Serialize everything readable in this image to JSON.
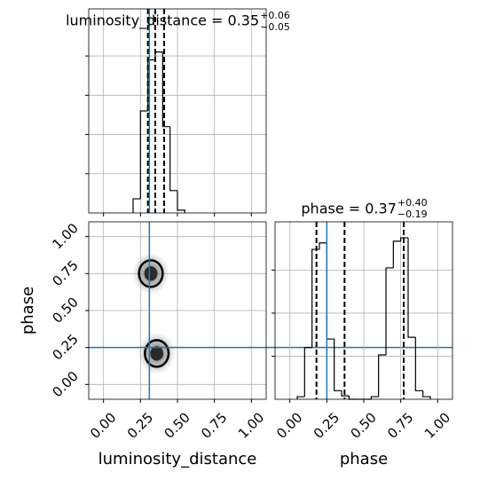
{
  "chart_data": [
    {
      "type": "histogram",
      "title": "luminosity_distance = 0.35",
      "title_sup": "+0.06",
      "title_sub": "−0.05",
      "bins": [
        0.2,
        0.25,
        0.3,
        0.35,
        0.4,
        0.45,
        0.5,
        0.55
      ],
      "counts": [
        0.36,
        2.6,
        3.9,
        4.1,
        2.2,
        0.57,
        0.07
      ],
      "color": "#000000",
      "quantiles": [
        0.3,
        0.35,
        0.41
      ],
      "truth": 0.31,
      "truth_color": "#1f77b4",
      "xlim": [
        -0.1,
        1.1
      ],
      "xticks": [
        0,
        0.25,
        0.5,
        0.75,
        1
      ],
      "ylim": [
        0,
        5.2
      ],
      "yticks": [
        1,
        2,
        3,
        4
      ],
      "grid": true
    },
    {
      "type": "contour",
      "xlabel": "luminosity_distance",
      "ylabel": "phase",
      "contours": [
        {
          "x": 0.32,
          "y": 0.75,
          "rx": 0.08,
          "ry": 0.09
        },
        {
          "x": 0.36,
          "y": 0.21,
          "rx": 0.08,
          "ry": 0.09
        }
      ],
      "truth_x": 0.31,
      "truth_y": 0.25,
      "truth_color": "#1f77b4",
      "xlim": [
        -0.1,
        1.1
      ],
      "ylim": [
        -0.1,
        1.1
      ],
      "xticks": [
        {
          "value": 0,
          "label": "0.00"
        },
        {
          "value": 0.25,
          "label": "0.25"
        },
        {
          "value": 0.5,
          "label": "0.50"
        },
        {
          "value": 0.75,
          "label": "0.75"
        },
        {
          "value": 1,
          "label": "1.00"
        }
      ],
      "yticks": [
        {
          "value": 0,
          "label": "0.00"
        },
        {
          "value": 0.25,
          "label": "0.25"
        },
        {
          "value": 0.5,
          "label": "0.50"
        },
        {
          "value": 0.75,
          "label": "0.75"
        },
        {
          "value": 1,
          "label": "1.00"
        }
      ],
      "grid": true
    },
    {
      "type": "histogram",
      "title": "phase = 0.37",
      "title_sup": "+0.40",
      "title_sub": "−0.19",
      "xlabel": "phase",
      "bins": [
        0.05,
        0.1,
        0.15,
        0.2,
        0.25,
        0.3,
        0.35,
        0.4,
        0.45,
        0.5,
        0.55,
        0.6,
        0.65,
        0.7,
        0.75,
        0.8,
        0.85,
        0.9,
        0.95
      ],
      "counts": [
        0.06,
        1.2,
        3.48,
        3.63,
        1.4,
        0.2,
        0.08,
        0,
        0,
        0,
        0.06,
        1.03,
        3.05,
        3.67,
        3.75,
        1.44,
        0.2,
        0.06
      ],
      "color": "#000000",
      "quantiles": [
        0.18,
        0.37,
        0.77
      ],
      "truth": 0.25,
      "truth_color": "#1f77b4",
      "xlim": [
        -0.1,
        1.1
      ],
      "xticks": [
        {
          "value": 0,
          "label": "0.00"
        },
        {
          "value": 0.25,
          "label": "0.25"
        },
        {
          "value": 0.5,
          "label": "0.50"
        },
        {
          "value": 0.75,
          "label": "0.75"
        },
        {
          "value": 1,
          "label": "1.00"
        }
      ],
      "ylim": [
        0,
        4.12
      ],
      "yticks": [
        1,
        2,
        3
      ],
      "grid": true
    }
  ]
}
